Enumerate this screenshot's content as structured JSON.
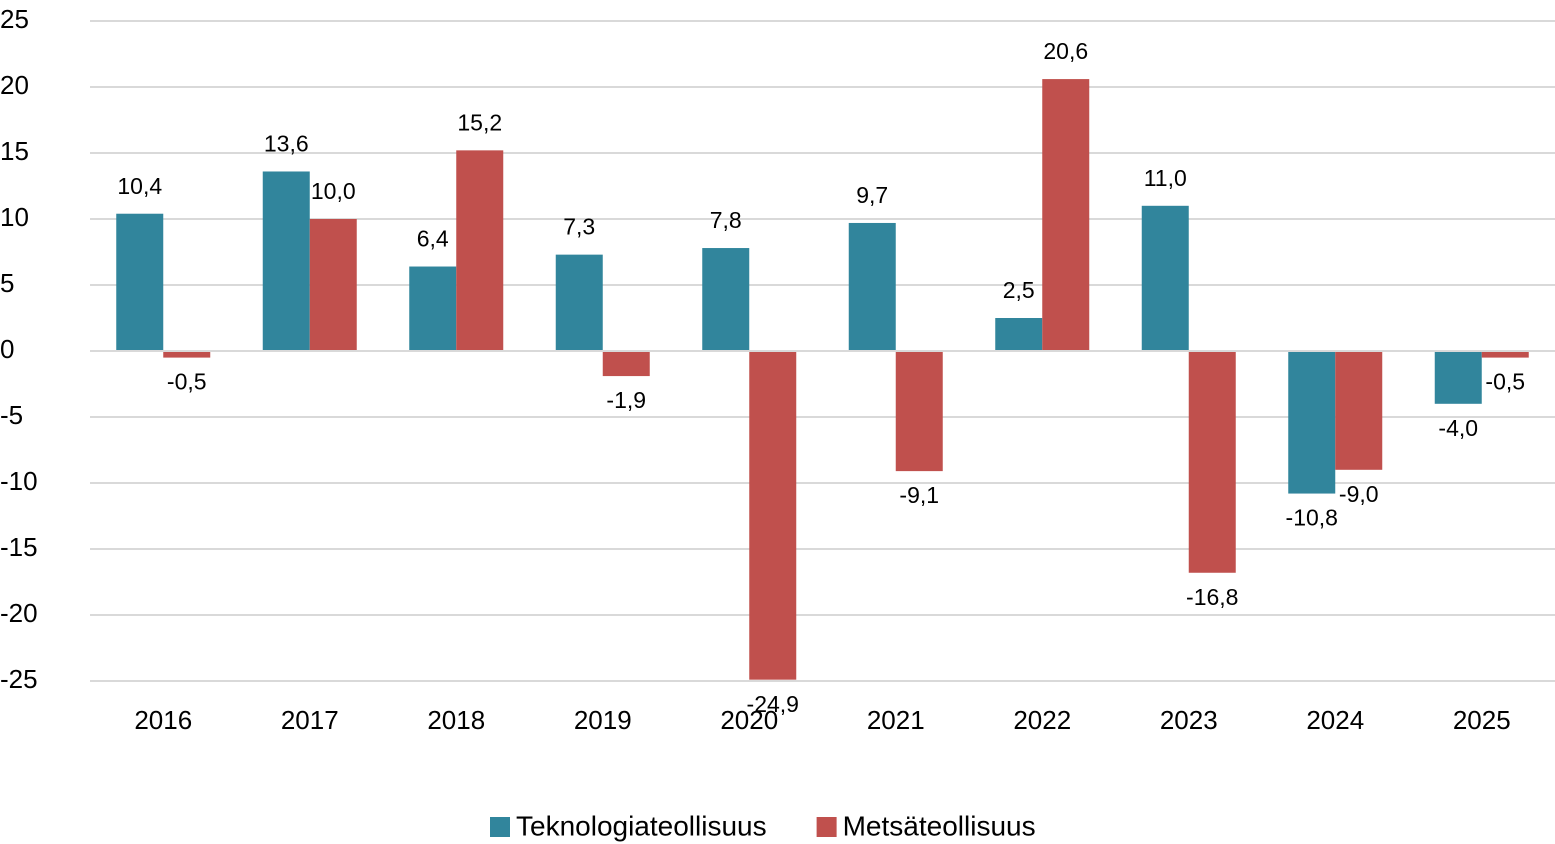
{
  "chart_data": {
    "type": "bar",
    "categories": [
      "2016",
      "2017",
      "2018",
      "2019",
      "2020",
      "2021",
      "2022",
      "2023",
      "2024",
      "2025"
    ],
    "series": [
      {
        "name": "Teknologiateollisuus",
        "color": "#31859c",
        "values": [
          10.4,
          13.6,
          6.4,
          7.3,
          7.8,
          9.7,
          2.5,
          11.0,
          -10.8,
          -4.0
        ],
        "value_labels": [
          "10,4",
          "13,6",
          "6,4",
          "7,3",
          "7,8",
          "9,7",
          "2,5",
          "11,0",
          "-10,8",
          "-4,0"
        ]
      },
      {
        "name": "Metsäteollisuus",
        "color": "#c0504d",
        "values": [
          -0.5,
          10.0,
          15.2,
          -1.9,
          -24.9,
          -9.1,
          20.6,
          -16.8,
          -9.0,
          -0.5
        ],
        "value_labels": [
          "-0,5",
          "10,0",
          "15,2",
          "-1,9",
          "-24,9",
          "-9,1",
          "20,6",
          "-16,8",
          "-9,0",
          "-0,5"
        ]
      }
    ],
    "ylim": [
      -25,
      25
    ],
    "yticks": [
      -25,
      -20,
      -15,
      -10,
      -5,
      0,
      5,
      10,
      15,
      20,
      25
    ],
    "grid": true,
    "legend": "bottom"
  }
}
